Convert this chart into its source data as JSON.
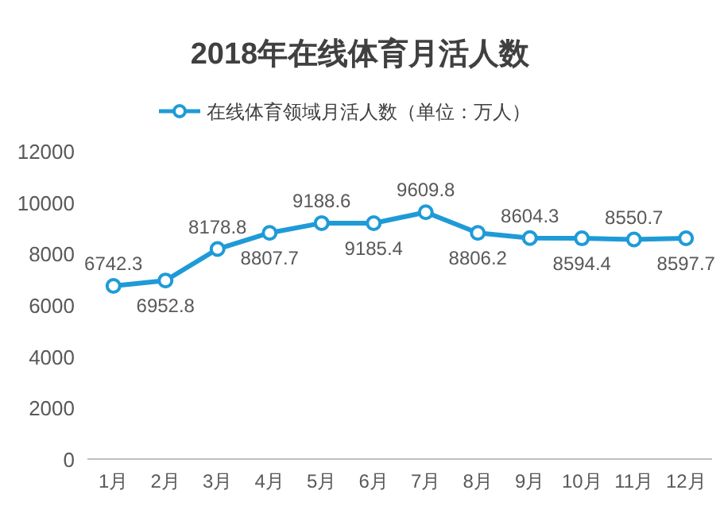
{
  "chart_data": {
    "type": "line",
    "title": "2018年在线体育月活人数",
    "categories": [
      "1月",
      "2月",
      "3月",
      "4月",
      "5月",
      "6月",
      "7月",
      "8月",
      "9月",
      "10月",
      "11月",
      "12月"
    ],
    "series": [
      {
        "name": "在线体育领域月活人数（单位：万人）",
        "color": "#1e9bd7",
        "values": [
          6742.3,
          6952.8,
          8178.8,
          8807.7,
          9188.6,
          9185.4,
          9609.8,
          8806.2,
          8604.3,
          8594.4,
          8550.7,
          8597.7
        ]
      }
    ],
    "ylim": [
      0,
      12000
    ],
    "yticks": [
      0,
      2000,
      4000,
      6000,
      8000,
      10000,
      12000
    ],
    "data_labels": true,
    "legend": "top",
    "grid": false,
    "marker": "circle",
    "line_style": "solid"
  }
}
